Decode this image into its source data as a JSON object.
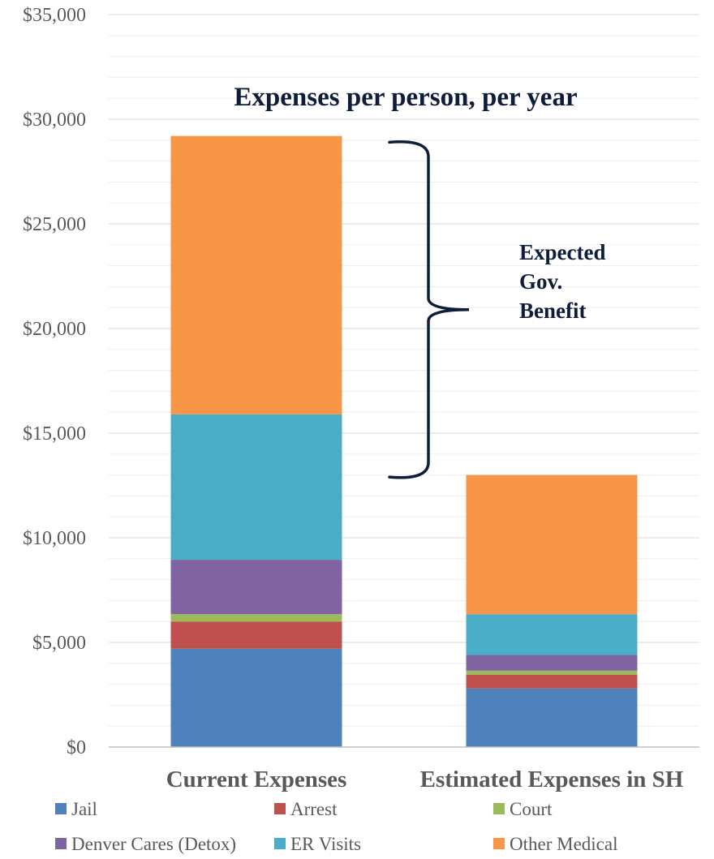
{
  "chart_data": {
    "type": "bar",
    "stacked": true,
    "title": "Expenses per person, per year",
    "categories": [
      "Current Expenses",
      "Estimated Expenses in SH"
    ],
    "ylim": [
      0,
      35000
    ],
    "ytick_step": 5000,
    "yticks": [
      "$0",
      "$5,000",
      "$10,000",
      "$15,000",
      "$20,000",
      "$25,000",
      "$30,000",
      "$35,000"
    ],
    "grid": true,
    "legend_position": "bottom",
    "series": [
      {
        "name": "Jail",
        "color": "#4f81bd",
        "values": [
          4700,
          2800
        ]
      },
      {
        "name": "Arrest",
        "color": "#c0504d",
        "values": [
          1300,
          650
        ]
      },
      {
        "name": "Court",
        "color": "#9bbb59",
        "values": [
          350,
          200
        ]
      },
      {
        "name": "Denver Cares (Detox)",
        "color": "#8064a2",
        "values": [
          2600,
          750
        ]
      },
      {
        "name": "ER Visits",
        "color": "#4bacc6",
        "values": [
          6950,
          1950
        ]
      },
      {
        "name": "Other Medical",
        "color": "#f79646",
        "values": [
          13300,
          6650
        ]
      }
    ],
    "annotation": {
      "lines": [
        "Expected",
        "Gov.",
        "Benefit"
      ],
      "brace_from": 28900,
      "brace_to": 12900,
      "color": "#0e1e3a"
    }
  }
}
